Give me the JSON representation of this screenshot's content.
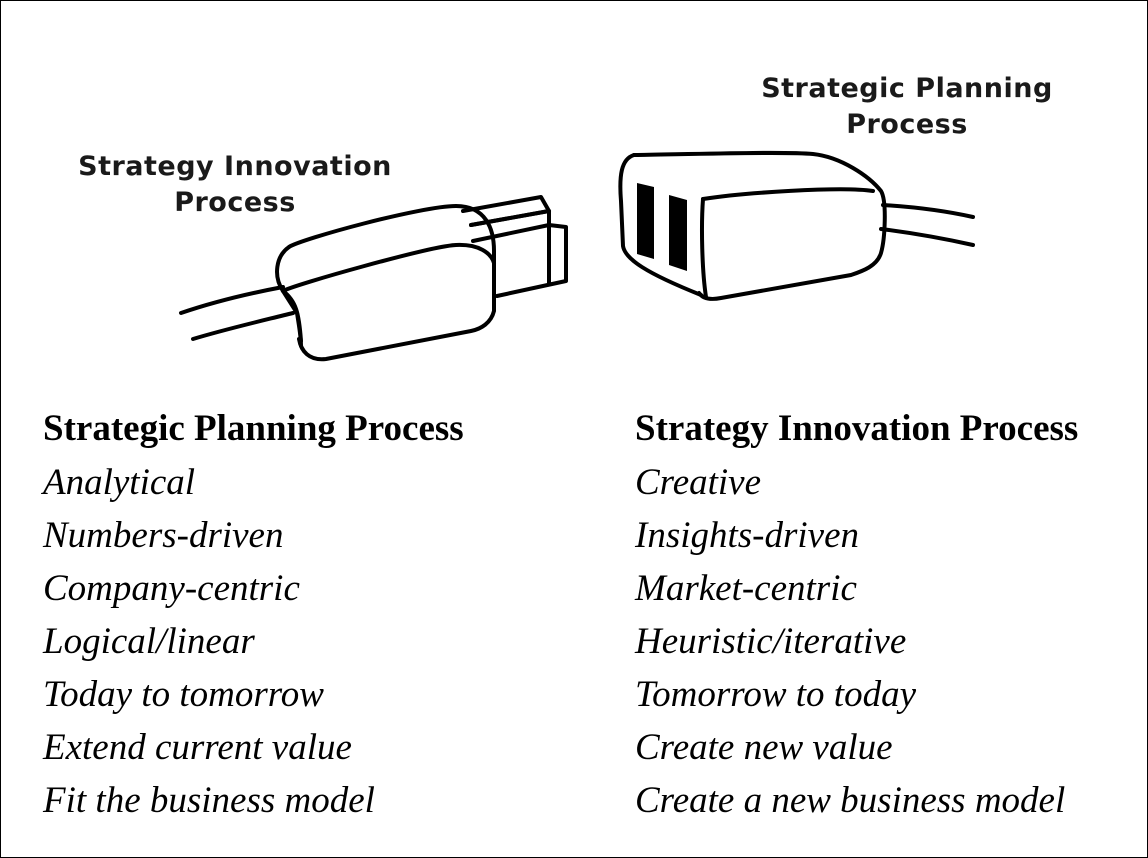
{
  "illustration": {
    "left_plug_label_line1": "Strategy Innovation",
    "left_plug_label_line2": "Process",
    "right_plug_label_line1": "Strategic Planning",
    "right_plug_label_line2": "Process"
  },
  "left_column": {
    "title": "Strategic Planning Process",
    "items": [
      "Analytical",
      "Numbers-driven",
      "Company-centric",
      "Logical/linear",
      "Today to tomorrow",
      "Extend current value",
      "Fit the business model"
    ]
  },
  "right_column": {
    "title": "Strategy Innovation Process",
    "items": [
      "Creative",
      "Insights-driven",
      "Market-centric",
      "Heuristic/iterative",
      "Tomorrow to today",
      "Create new value",
      "Create a new business model"
    ]
  }
}
